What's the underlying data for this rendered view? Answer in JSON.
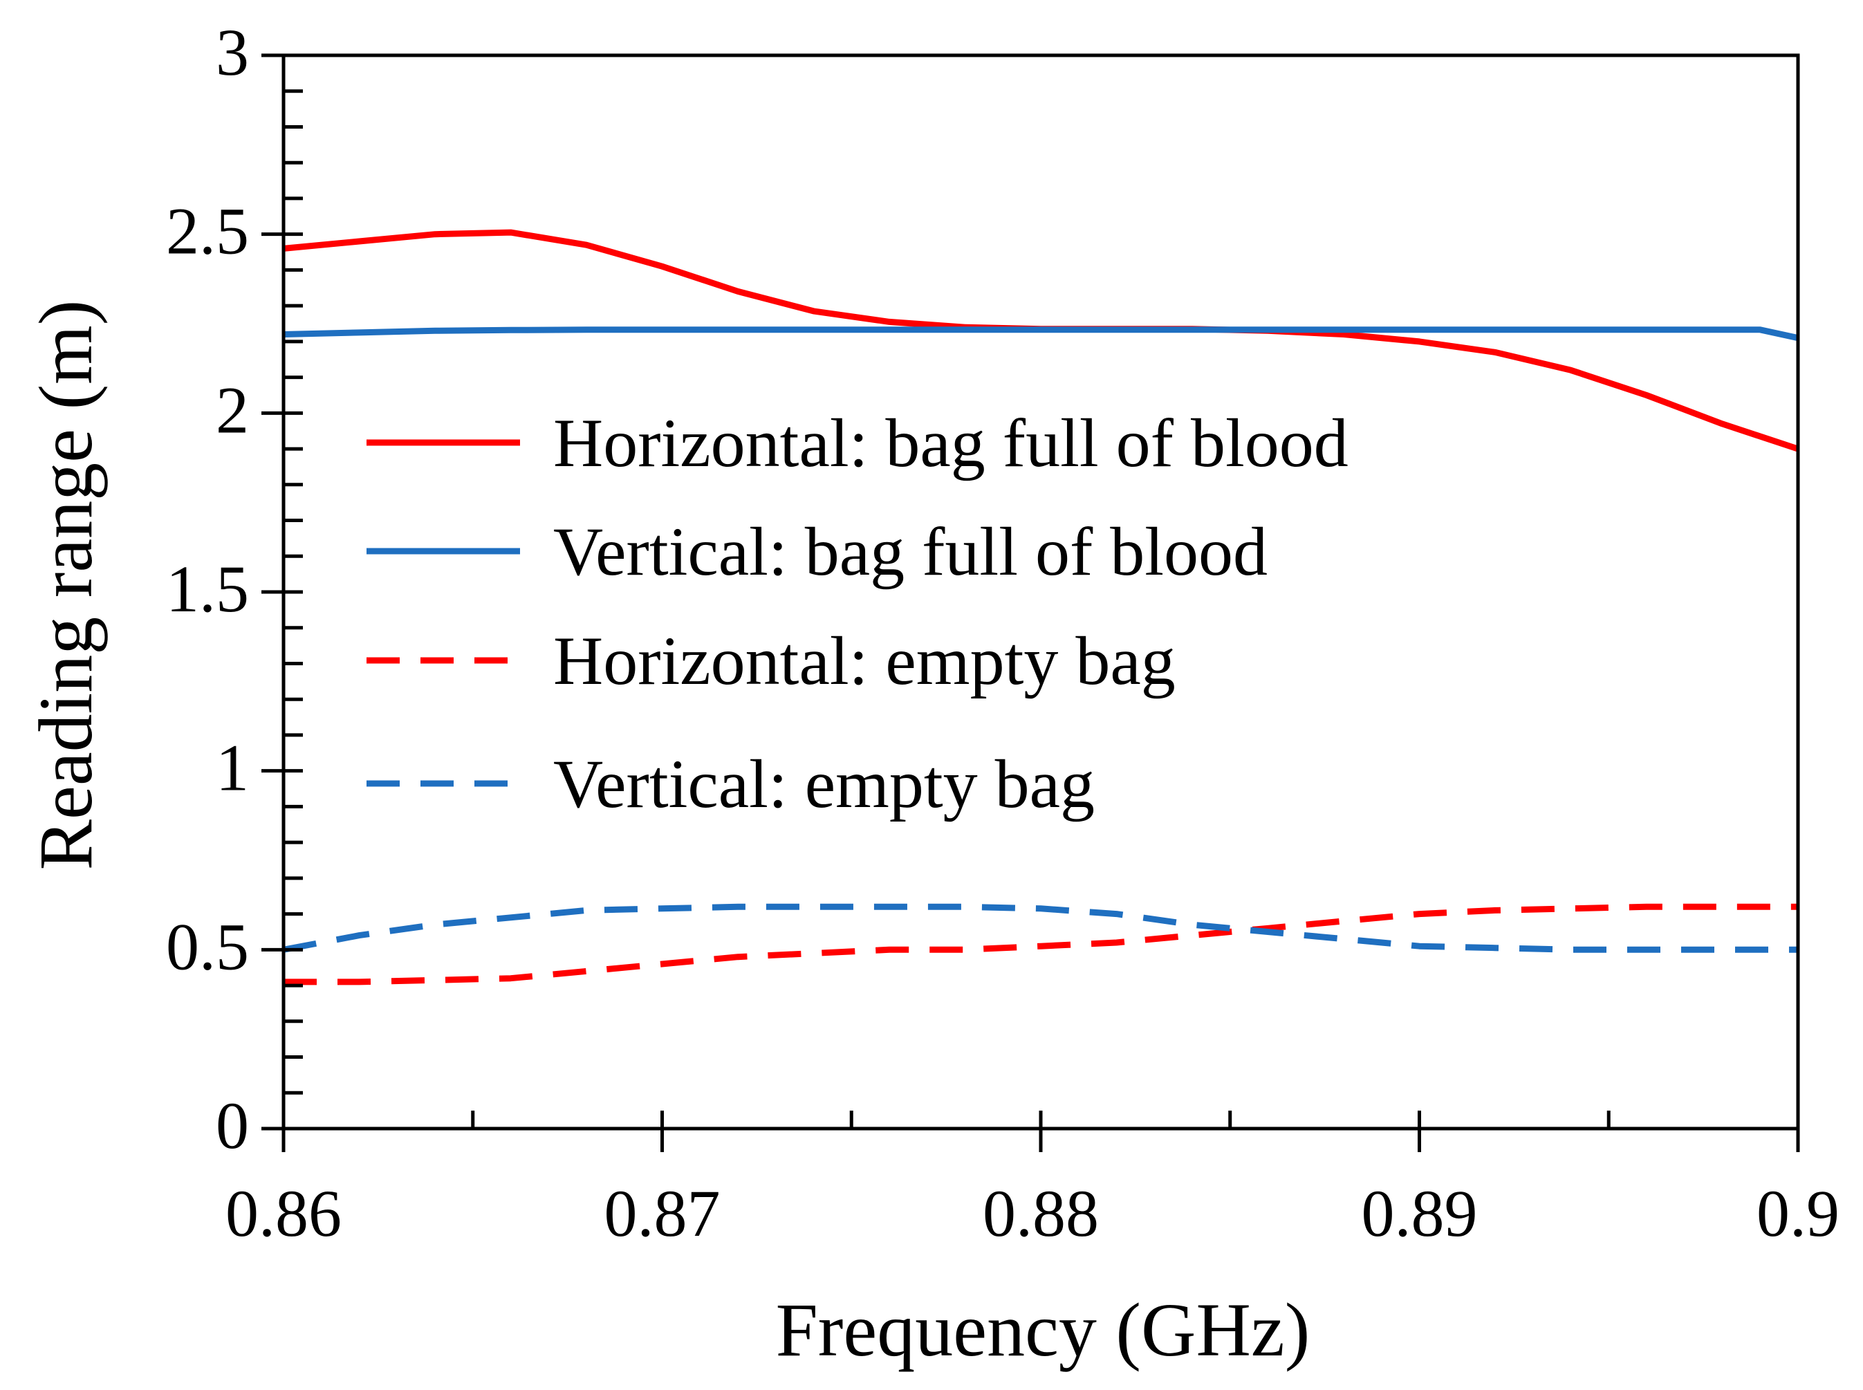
{
  "chart_data": {
    "type": "line",
    "xlabel": "Frequency (GHz)",
    "ylabel": "Reading range (m)",
    "xlim": [
      0.86,
      0.9
    ],
    "ylim": [
      0,
      3
    ],
    "x_ticks": [
      0.86,
      0.87,
      0.88,
      0.89,
      0.9
    ],
    "x_tick_labels": [
      "0.86",
      "0.87",
      "0.88",
      "0.89",
      "0.9"
    ],
    "x_minor_step": 0.005,
    "y_ticks": [
      0,
      0.5,
      1,
      1.5,
      2,
      2.5,
      3
    ],
    "y_tick_labels": [
      "0",
      "0.5",
      "1",
      "1.5",
      "2",
      "2.5",
      "3"
    ],
    "y_minor_step": 0.1,
    "grid": false,
    "legend_position": "center-left",
    "series": [
      {
        "name": "Horizontal: bag full of blood",
        "color": "#ff0000",
        "dash": "solid",
        "x": [
          0.86,
          0.862,
          0.864,
          0.866,
          0.868,
          0.87,
          0.872,
          0.874,
          0.876,
          0.878,
          0.88,
          0.882,
          0.884,
          0.886,
          0.888,
          0.89,
          0.892,
          0.894,
          0.896,
          0.898,
          0.9
        ],
        "y": [
          2.46,
          2.48,
          2.5,
          2.505,
          2.47,
          2.41,
          2.34,
          2.285,
          2.255,
          2.24,
          2.235,
          2.235,
          2.235,
          2.23,
          2.22,
          2.2,
          2.17,
          2.12,
          2.05,
          1.97,
          1.9
        ]
      },
      {
        "name": "Vertical: bag full of blood",
        "color": "#1f6fc0",
        "dash": "solid",
        "x": [
          0.86,
          0.862,
          0.864,
          0.866,
          0.868,
          0.87,
          0.872,
          0.874,
          0.876,
          0.878,
          0.88,
          0.882,
          0.884,
          0.886,
          0.888,
          0.89,
          0.892,
          0.894,
          0.896,
          0.898,
          0.899,
          0.9
        ],
        "y": [
          2.22,
          2.225,
          2.23,
          2.232,
          2.233,
          2.233,
          2.233,
          2.233,
          2.233,
          2.233,
          2.233,
          2.233,
          2.233,
          2.233,
          2.233,
          2.233,
          2.233,
          2.233,
          2.233,
          2.233,
          2.233,
          2.21
        ]
      },
      {
        "name": "Horizontal: empty bag",
        "color": "#ff0000",
        "dash": "dashed",
        "x": [
          0.86,
          0.862,
          0.864,
          0.866,
          0.868,
          0.87,
          0.872,
          0.874,
          0.876,
          0.878,
          0.88,
          0.882,
          0.884,
          0.886,
          0.888,
          0.89,
          0.892,
          0.894,
          0.896,
          0.898,
          0.9
        ],
        "y": [
          0.41,
          0.41,
          0.415,
          0.42,
          0.44,
          0.46,
          0.48,
          0.49,
          0.5,
          0.5,
          0.51,
          0.52,
          0.54,
          0.56,
          0.58,
          0.6,
          0.61,
          0.615,
          0.62,
          0.62,
          0.62
        ]
      },
      {
        "name": "Vertical: empty bag",
        "color": "#1f6fc0",
        "dash": "dashed",
        "x": [
          0.86,
          0.862,
          0.864,
          0.866,
          0.868,
          0.87,
          0.872,
          0.874,
          0.876,
          0.878,
          0.88,
          0.882,
          0.884,
          0.886,
          0.888,
          0.89,
          0.892,
          0.894,
          0.896,
          0.898,
          0.9
        ],
        "y": [
          0.5,
          0.54,
          0.57,
          0.59,
          0.61,
          0.615,
          0.62,
          0.62,
          0.62,
          0.62,
          0.615,
          0.6,
          0.57,
          0.55,
          0.53,
          0.51,
          0.505,
          0.5,
          0.5,
          0.5,
          0.5
        ]
      }
    ]
  }
}
